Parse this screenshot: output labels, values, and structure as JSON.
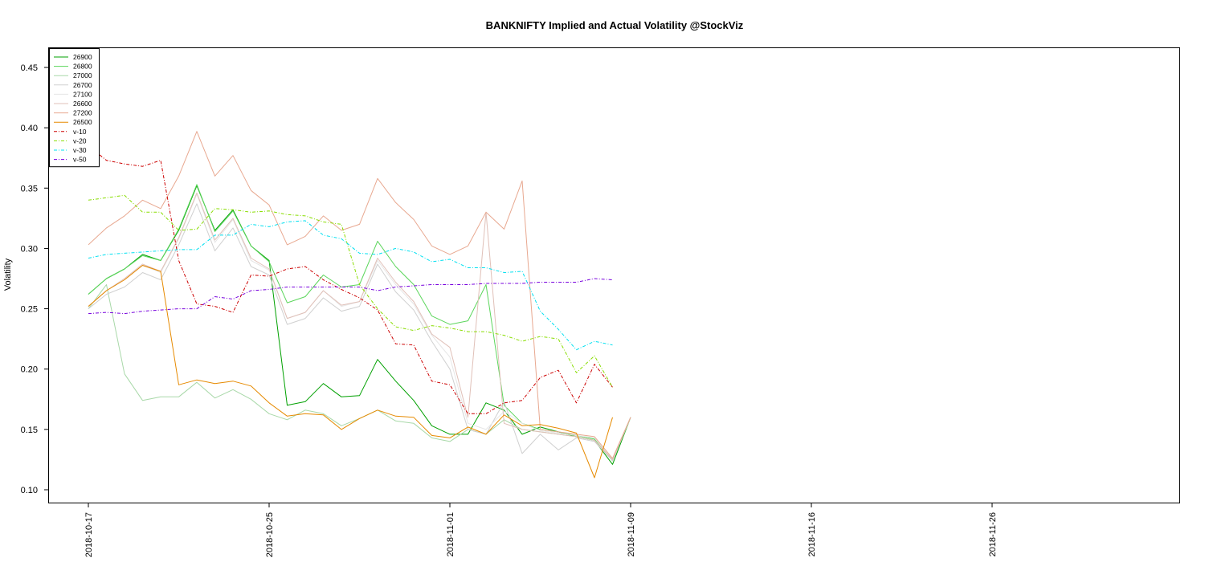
{
  "chart_data": {
    "type": "line",
    "title": "BANKNIFTY Implied and Actual Volatility @StockViz",
    "xlabel": "",
    "ylabel": "Volatility",
    "ylim": [
      0.1,
      0.45
    ],
    "y_ticks": [
      0.1,
      0.15,
      0.2,
      0.25,
      0.3,
      0.35,
      0.4,
      0.45
    ],
    "y_tick_labels": [
      "0.10",
      "0.15",
      "0.20",
      "0.25",
      "0.30",
      "0.35",
      "0.40",
      "0.45"
    ],
    "x_tick_labels": [
      "2018-10-17",
      "2018-10-25",
      "2018-11-01",
      "2018-11-09",
      "2018-11-16",
      "2018-11-26"
    ],
    "x_tick_positions": [
      0,
      10,
      20,
      30,
      40,
      50
    ],
    "legend_position": "top-left",
    "series": [
      {
        "name": "26900",
        "color": "#00a000",
        "dash": "solid",
        "values": [
          0.262,
          0.275,
          0.283,
          0.295,
          0.29,
          0.315,
          0.352,
          0.315,
          0.332,
          0.302,
          0.29,
          0.17,
          0.173,
          0.188,
          0.177,
          0.178,
          0.208,
          0.19,
          0.174,
          0.153,
          0.146,
          0.146,
          0.172,
          0.166,
          0.146,
          0.152,
          0.148,
          0.144,
          0.141,
          0.121,
          0.16
        ]
      },
      {
        "name": "26800",
        "color": "#5cd65c",
        "dash": "solid",
        "values": [
          0.262,
          0.275,
          0.283,
          0.294,
          0.29,
          0.316,
          0.353,
          0.314,
          0.331,
          0.302,
          0.289,
          0.255,
          0.26,
          0.278,
          0.268,
          0.27,
          0.306,
          0.285,
          0.27,
          0.244,
          0.237,
          0.24,
          0.27,
          0.17,
          0.155,
          0.15,
          0.148,
          0.145,
          0.142,
          0.124,
          0.16
        ]
      },
      {
        "name": "27000",
        "color": "#a8d8a8",
        "dash": "solid",
        "values": [
          0.25,
          0.27,
          0.196,
          0.174,
          0.177,
          0.177,
          0.189,
          0.176,
          0.183,
          0.175,
          0.163,
          0.158,
          0.166,
          0.163,
          0.153,
          0.159,
          0.166,
          0.157,
          0.155,
          0.143,
          0.14,
          0.15,
          0.146,
          0.158,
          0.15,
          0.148,
          0.146,
          0.144,
          0.141,
          0.125,
          0.16
        ]
      },
      {
        "name": "26700",
        "color": "#d0d0d0",
        "dash": "solid",
        "values": [
          0.25,
          0.262,
          0.268,
          0.28,
          0.274,
          0.303,
          0.337,
          0.298,
          0.317,
          0.285,
          0.278,
          0.237,
          0.242,
          0.259,
          0.248,
          0.252,
          0.287,
          0.264,
          0.249,
          0.223,
          0.2,
          0.15,
          0.146,
          0.173,
          0.13,
          0.146,
          0.133,
          0.143,
          0.14,
          0.124,
          0.16
        ]
      },
      {
        "name": "27100",
        "color": "#e6e6e6",
        "dash": "solid",
        "values": [
          0.252,
          0.265,
          0.275,
          0.286,
          0.28,
          0.308,
          0.345,
          0.305,
          0.324,
          0.29,
          0.282,
          0.242,
          0.247,
          0.265,
          0.252,
          0.256,
          0.29,
          0.27,
          0.254,
          0.228,
          0.21,
          0.155,
          0.15,
          0.165,
          0.155,
          0.149,
          0.147,
          0.145,
          0.143,
          0.126,
          0.16
        ]
      },
      {
        "name": "26600",
        "color": "#e0c0b8",
        "dash": "solid",
        "values": [
          0.252,
          0.265,
          0.275,
          0.287,
          0.281,
          0.309,
          0.346,
          0.307,
          0.325,
          0.292,
          0.283,
          0.242,
          0.247,
          0.265,
          0.253,
          0.256,
          0.292,
          0.272,
          0.256,
          0.229,
          0.218,
          0.16,
          0.33,
          0.155,
          0.15,
          0.148,
          0.146,
          0.144,
          0.141,
          0.125,
          0.16
        ]
      },
      {
        "name": "27200",
        "color": "#e8a890",
        "dash": "solid",
        "values": [
          0.303,
          0.317,
          0.327,
          0.34,
          0.333,
          0.36,
          0.397,
          0.36,
          0.377,
          0.348,
          0.336,
          0.303,
          0.31,
          0.327,
          0.315,
          0.32,
          0.358,
          0.338,
          0.324,
          0.302,
          0.295,
          0.302,
          0.33,
          0.316,
          0.356,
          0.15,
          0.148,
          0.146,
          0.144,
          0.126,
          0.16
        ]
      },
      {
        "name": "26500",
        "color": "#e68a00",
        "dash": "solid",
        "values": [
          0.252,
          0.265,
          0.274,
          0.286,
          0.281,
          0.187,
          0.191,
          0.188,
          0.19,
          0.186,
          0.172,
          0.161,
          0.163,
          0.162,
          0.15,
          0.159,
          0.166,
          0.161,
          0.16,
          0.145,
          0.143,
          0.152,
          0.146,
          0.162,
          0.153,
          0.154,
          0.151,
          0.147,
          0.11,
          0.16
        ]
      },
      {
        "name": "v-10",
        "color": "#cc0000",
        "dash": "dashdot",
        "values": [
          0.385,
          0.373,
          0.37,
          0.368,
          0.373,
          0.29,
          0.254,
          0.252,
          0.247,
          0.278,
          0.277,
          0.283,
          0.285,
          0.274,
          0.266,
          0.259,
          0.249,
          0.221,
          0.22,
          0.19,
          0.187,
          0.163,
          0.163,
          0.172,
          0.174,
          0.193,
          0.199,
          0.172,
          0.204,
          0.185
        ]
      },
      {
        "name": "v-20",
        "color": "#88dd00",
        "dash": "dashdot",
        "values": [
          0.34,
          0.342,
          0.344,
          0.33,
          0.33,
          0.315,
          0.316,
          0.333,
          0.332,
          0.33,
          0.331,
          0.328,
          0.327,
          0.322,
          0.32,
          0.27,
          0.25,
          0.235,
          0.232,
          0.236,
          0.234,
          0.231,
          0.231,
          0.228,
          0.223,
          0.227,
          0.225,
          0.197,
          0.211,
          0.185
        ]
      },
      {
        "name": "v-30",
        "color": "#00e0f0",
        "dash": "dashdot",
        "values": [
          0.292,
          0.295,
          0.296,
          0.297,
          0.298,
          0.299,
          0.299,
          0.311,
          0.311,
          0.32,
          0.318,
          0.322,
          0.323,
          0.311,
          0.308,
          0.296,
          0.295,
          0.3,
          0.297,
          0.289,
          0.291,
          0.284,
          0.284,
          0.28,
          0.281,
          0.248,
          0.233,
          0.216,
          0.223,
          0.22
        ]
      },
      {
        "name": "v-50",
        "color": "#7700dd",
        "dash": "dashdot",
        "values": [
          0.246,
          0.247,
          0.246,
          0.248,
          0.249,
          0.25,
          0.25,
          0.26,
          0.258,
          0.265,
          0.266,
          0.268,
          0.268,
          0.268,
          0.268,
          0.268,
          0.265,
          0.268,
          0.269,
          0.27,
          0.27,
          0.27,
          0.271,
          0.271,
          0.271,
          0.272,
          0.272,
          0.272,
          0.275,
          0.274
        ]
      }
    ]
  }
}
